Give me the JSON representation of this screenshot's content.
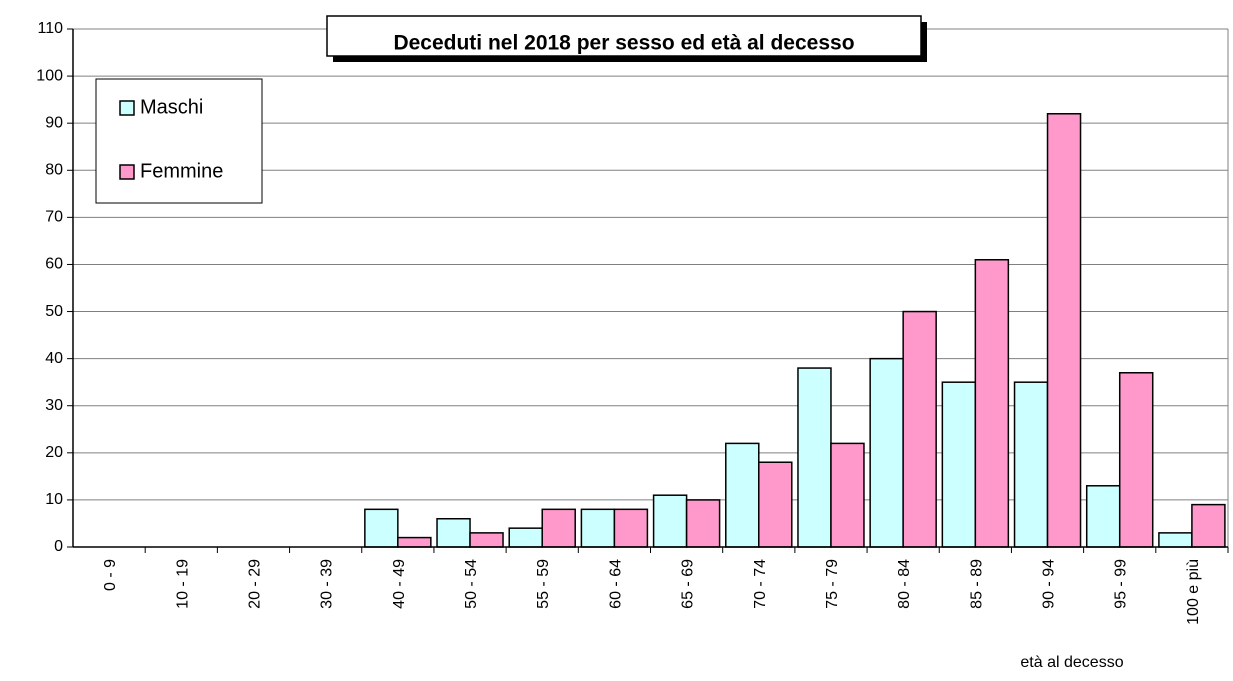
{
  "chart_data": {
    "type": "bar",
    "title": "Deceduti nel 2018 per sesso ed età al decesso",
    "xlabel": "età al decesso",
    "ylabel": "",
    "ylim": [
      0,
      110
    ],
    "yticks": [
      0,
      10,
      20,
      30,
      40,
      50,
      60,
      70,
      80,
      90,
      100,
      110
    ],
    "grid": true,
    "legend_position": "top-left",
    "categories": [
      "0 - 9",
      "10 - 19",
      "20 - 29",
      "30 - 39",
      "40 - 49",
      "50 - 54",
      "55 - 59",
      "60 - 64",
      "65 - 69",
      "70 - 74",
      "75 - 79",
      "80 - 84",
      "85 - 89",
      "90 - 94",
      "95 - 99",
      "100 e più"
    ],
    "series": [
      {
        "name": "Maschi",
        "color": "#ccffff",
        "values": [
          0,
          0,
          0,
          0,
          8,
          6,
          4,
          8,
          11,
          22,
          38,
          40,
          35,
          35,
          13,
          3
        ]
      },
      {
        "name": "Femmine",
        "color": "#ff99cc",
        "values": [
          0,
          0,
          0,
          0,
          2,
          3,
          8,
          8,
          10,
          18,
          22,
          50,
          61,
          92,
          37,
          9
        ]
      }
    ]
  }
}
